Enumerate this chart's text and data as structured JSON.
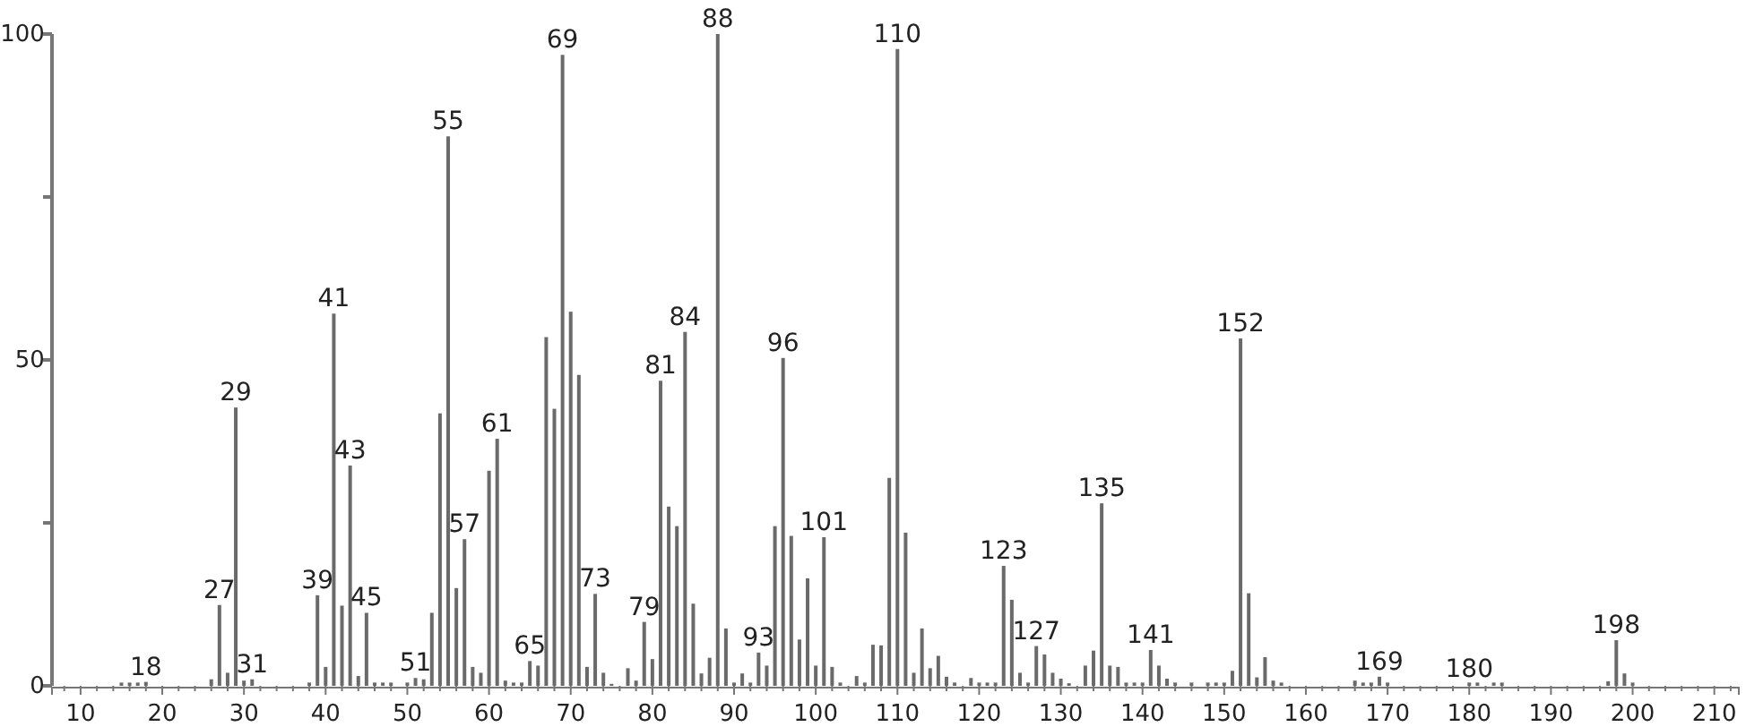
{
  "chart_data": {
    "type": "bar",
    "color": "#6a6a6a",
    "x": [
      15,
      16,
      17,
      18,
      26,
      27,
      28,
      29,
      30,
      31,
      38,
      39,
      40,
      41,
      42,
      43,
      44,
      45,
      46,
      47,
      48,
      50,
      51,
      52,
      53,
      54,
      55,
      56,
      57,
      58,
      59,
      60,
      61,
      62,
      63,
      64,
      65,
      66,
      67,
      68,
      69,
      70,
      71,
      72,
      73,
      74,
      75,
      77,
      78,
      79,
      80,
      81,
      82,
      83,
      84,
      85,
      86,
      87,
      88,
      89,
      90,
      91,
      92,
      93,
      94,
      95,
      96,
      97,
      98,
      99,
      100,
      101,
      102,
      103,
      105,
      106,
      107,
      108,
      109,
      110,
      111,
      112,
      113,
      114,
      115,
      116,
      117,
      119,
      120,
      121,
      122,
      123,
      124,
      125,
      126,
      127,
      128,
      129,
      130,
      131,
      133,
      134,
      135,
      136,
      137,
      138,
      139,
      140,
      141,
      142,
      143,
      144,
      146,
      148,
      149,
      150,
      151,
      152,
      153,
      154,
      155,
      156,
      157,
      166,
      167,
      168,
      169,
      170,
      180,
      181,
      183,
      184,
      197,
      198,
      199,
      200
    ],
    "values": [
      0.5,
      0.5,
      0.5,
      0.6,
      1,
      12.4,
      2,
      42.7,
      0.8,
      1,
      0.5,
      13.9,
      2.9,
      57.1,
      12.3,
      33.8,
      1.5,
      11.2,
      0.5,
      0.5,
      0.5,
      0.5,
      1.2,
      1,
      11.2,
      41.8,
      84.3,
      15,
      22.5,
      2.9,
      2,
      33,
      37.9,
      0.8,
      0.5,
      0.5,
      3.8,
      3.1,
      53.5,
      42.5,
      96.8,
      57.4,
      47.7,
      2.9,
      14.1,
      2,
      0.3,
      2.7,
      0.8,
      9.8,
      4.1,
      46.8,
      27.5,
      24.5,
      54.3,
      12.6,
      1.9,
      4.3,
      100,
      8.8,
      0.5,
      1.9,
      0.5,
      5.1,
      3.1,
      24.5,
      50.3,
      23,
      7.1,
      16.5,
      3.1,
      22.8,
      2.9,
      0.5,
      1.5,
      0.5,
      6.3,
      6.2,
      31.9,
      97.7,
      23.5,
      2,
      8.8,
      2.7,
      4.6,
      1.4,
      0.5,
      1.2,
      0.5,
      0.5,
      0.5,
      18.4,
      13.2,
      2,
      0.5,
      6.1,
      4.8,
      2,
      1.1,
      0.4,
      3.1,
      5.4,
      28,
      3.1,
      2.9,
      0.5,
      0.5,
      0.5,
      5.5,
      3.1,
      1.1,
      0.5,
      0.5,
      0.5,
      0.5,
      0.5,
      2.3,
      53.3,
      14.2,
      1.3,
      4.4,
      0.8,
      0.5,
      0.8,
      0.5,
      0.5,
      1.4,
      0.5,
      0.5,
      0.5,
      0.5,
      0.5,
      0.7,
      7,
      1.9,
      0.5
    ],
    "xlim": [
      6.5,
      213
    ],
    "xticks": [
      {
        "value": 8,
        "label": null
      },
      10,
      {
        "value": 12,
        "label": null
      },
      {
        "value": 14,
        "label": null
      },
      {
        "value": 16,
        "label": null
      },
      {
        "value": 18,
        "label": null
      },
      20,
      {
        "value": 22,
        "label": null
      },
      {
        "value": 24,
        "label": null
      },
      {
        "value": 26,
        "label": null
      },
      {
        "value": 28,
        "label": null
      },
      30,
      {
        "value": 32,
        "label": null
      },
      {
        "value": 34,
        "label": null
      },
      {
        "value": 36,
        "label": null
      },
      {
        "value": 38,
        "label": null
      },
      40,
      {
        "value": 42,
        "label": null
      },
      {
        "value": 44,
        "label": null
      },
      {
        "value": 46,
        "label": null
      },
      {
        "value": 48,
        "label": null
      },
      50,
      {
        "value": 52,
        "label": null
      },
      {
        "value": 54,
        "label": null
      },
      {
        "value": 56,
        "label": null
      },
      {
        "value": 58,
        "label": null
      },
      60,
      {
        "value": 62,
        "label": null
      },
      {
        "value": 64,
        "label": null
      },
      {
        "value": 66,
        "label": null
      },
      {
        "value": 68,
        "label": null
      },
      70,
      {
        "value": 72,
        "label": null
      },
      {
        "value": 74,
        "label": null
      },
      {
        "value": 76,
        "label": null
      },
      {
        "value": 78,
        "label": null
      },
      80,
      {
        "value": 82,
        "label": null
      },
      {
        "value": 84,
        "label": null
      },
      {
        "value": 86,
        "label": null
      },
      {
        "value": 88,
        "label": null
      },
      90,
      {
        "value": 92,
        "label": null
      },
      {
        "value": 94,
        "label": null
      },
      {
        "value": 96,
        "label": null
      },
      {
        "value": 98,
        "label": null
      },
      100,
      {
        "value": 102,
        "label": null
      },
      {
        "value": 104,
        "label": null
      },
      {
        "value": 106,
        "label": null
      },
      {
        "value": 108,
        "label": null
      },
      110,
      {
        "value": 112,
        "label": null
      },
      {
        "value": 114,
        "label": null
      },
      {
        "value": 116,
        "label": null
      },
      {
        "value": 118,
        "label": null
      },
      120,
      {
        "value": 122,
        "label": null
      },
      {
        "value": 124,
        "label": null
      },
      {
        "value": 126,
        "label": null
      },
      {
        "value": 128,
        "label": null
      },
      130,
      {
        "value": 132,
        "label": null
      },
      {
        "value": 134,
        "label": null
      },
      {
        "value": 136,
        "label": null
      },
      {
        "value": 138,
        "label": null
      },
      140,
      {
        "value": 142,
        "label": null
      },
      {
        "value": 144,
        "label": null
      },
      {
        "value": 146,
        "label": null
      },
      {
        "value": 148,
        "label": null
      },
      150,
      {
        "value": 152,
        "label": null
      },
      {
        "value": 154,
        "label": null
      },
      {
        "value": 156,
        "label": null
      },
      {
        "value": 158,
        "label": null
      },
      160,
      {
        "value": 162,
        "label": null
      },
      {
        "value": 164,
        "label": null
      },
      {
        "value": 166,
        "label": null
      },
      {
        "value": 168,
        "label": null
      },
      170,
      {
        "value": 172,
        "label": null
      },
      {
        "value": 174,
        "label": null
      },
      {
        "value": 176,
        "label": null
      },
      {
        "value": 178,
        "label": null
      },
      180,
      {
        "value": 182,
        "label": null
      },
      {
        "value": 184,
        "label": null
      },
      {
        "value": 186,
        "label": null
      },
      {
        "value": 188,
        "label": null
      },
      190,
      {
        "value": 192,
        "label": null
      },
      {
        "value": 194,
        "label": null
      },
      {
        "value": 196,
        "label": null
      },
      {
        "value": 198,
        "label": null
      },
      200,
      {
        "value": 202,
        "label": null
      },
      {
        "value": 204,
        "label": null
      },
      {
        "value": 206,
        "label": null
      },
      {
        "value": 208,
        "label": null
      },
      210,
      {
        "value": 212,
        "label": null
      }
    ],
    "ylim": [
      0,
      100
    ],
    "yticks": [
      0,
      {
        "value": 25,
        "label": null
      },
      50,
      {
        "value": 75,
        "label": null
      },
      100
    ],
    "annotations": [
      {
        "text": "18",
        "x": 18,
        "y": 0.6
      },
      {
        "text": "27",
        "x": 27,
        "y": 12.4
      },
      {
        "text": "29",
        "x": 29,
        "y": 42.7
      },
      {
        "text": "31",
        "x": 31,
        "y": 1
      },
      {
        "text": "39",
        "x": 39,
        "y": 13.9
      },
      {
        "text": "41",
        "x": 41,
        "y": 57.1
      },
      {
        "text": "43",
        "x": 43,
        "y": 33.8
      },
      {
        "text": "45",
        "x": 45,
        "y": 11.2
      },
      {
        "text": "51",
        "x": 51,
        "y": 1.2
      },
      {
        "text": "55",
        "x": 55,
        "y": 84.3
      },
      {
        "text": "57",
        "x": 57,
        "y": 22.5
      },
      {
        "text": "61",
        "x": 61,
        "y": 37.9
      },
      {
        "text": "65",
        "x": 65,
        "y": 3.8
      },
      {
        "text": "69",
        "x": 69,
        "y": 96.8
      },
      {
        "text": "73",
        "x": 73,
        "y": 14.1
      },
      {
        "text": "79",
        "x": 79,
        "y": 9.8
      },
      {
        "text": "81",
        "x": 81,
        "y": 46.8
      },
      {
        "text": "84",
        "x": 84,
        "y": 54.3
      },
      {
        "text": "88",
        "x": 88,
        "y": 100
      },
      {
        "text": "93",
        "x": 93,
        "y": 5.1
      },
      {
        "text": "96",
        "x": 96,
        "y": 50.3
      },
      {
        "text": "101",
        "x": 101,
        "y": 22.8
      },
      {
        "text": "110",
        "x": 110,
        "y": 97.7
      },
      {
        "text": "123",
        "x": 123,
        "y": 18.4
      },
      {
        "text": "127",
        "x": 127,
        "y": 6.1
      },
      {
        "text": "135",
        "x": 135,
        "y": 28
      },
      {
        "text": "141",
        "x": 141,
        "y": 5.5
      },
      {
        "text": "152",
        "x": 152,
        "y": 53.3
      },
      {
        "text": "169",
        "x": 169,
        "y": 1.4
      },
      {
        "text": "180",
        "x": 180,
        "y": 0.3
      },
      {
        "text": "198",
        "x": 198,
        "y": 7
      }
    ]
  }
}
